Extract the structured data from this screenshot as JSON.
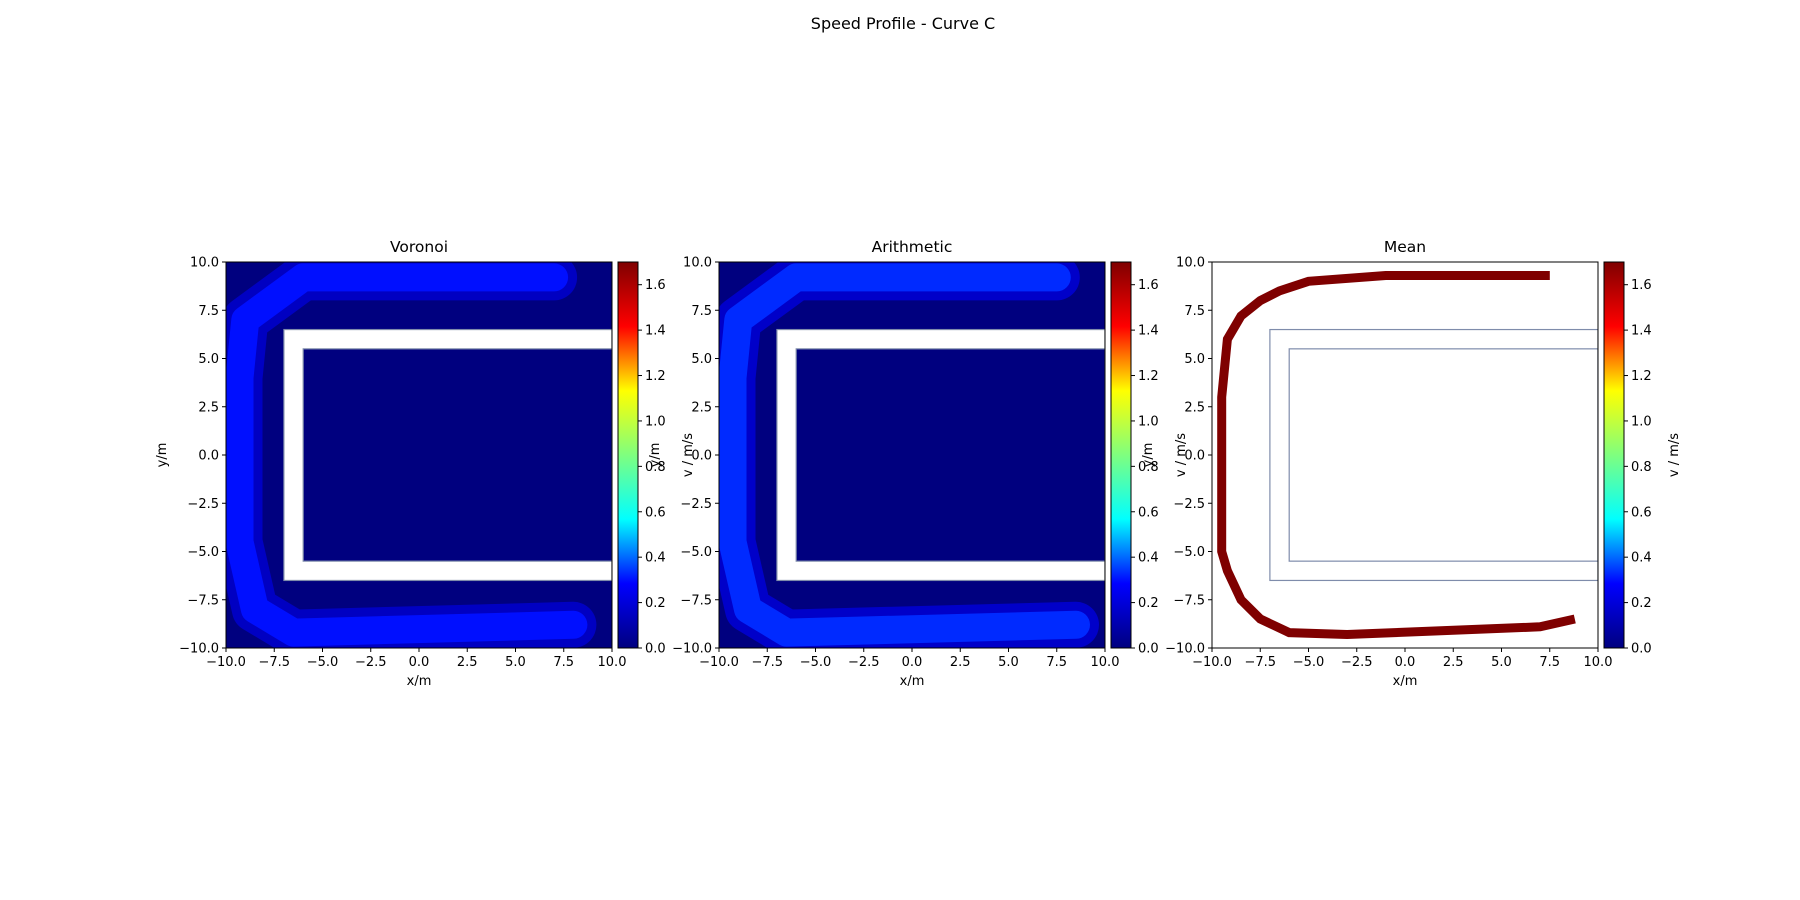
{
  "figure_title": "Speed Profile - Curve C",
  "colormap_colors": [
    "#00007f",
    "#0000ff",
    "#00ffff",
    "#7fff7f",
    "#ffff00",
    "#ff0000",
    "#7f0000"
  ],
  "wall_color": "#7f8cab",
  "chart_data": [
    {
      "type": "heatmap",
      "title": "Voronoi",
      "xlabel": "x/m",
      "ylabel": "y/m",
      "xlim": [
        -10,
        10
      ],
      "ylim": [
        -10,
        10
      ],
      "x_ticks": [
        "−10.0",
        "−7.5",
        "−5.0",
        "−2.5",
        "0.0",
        "2.5",
        "5.0",
        "7.5",
        "10.0"
      ],
      "y_ticks": [
        "−10.0",
        "−7.5",
        "−5.0",
        "−2.5",
        "0.0",
        "2.5",
        "5.0",
        "7.5",
        "10.0"
      ],
      "colorbar": {
        "label": "v / m/s",
        "range": [
          0,
          1.7
        ],
        "ticks": [
          "0.0",
          "0.2",
          "0.4",
          "0.6",
          "0.8",
          "1.0",
          "1.2",
          "1.4",
          "1.6"
        ]
      },
      "background_value": 0.0,
      "corridor_value": 0.3,
      "corridor_path": [
        [
          7.0,
          9.2
        ],
        [
          -6.0,
          9.2
        ],
        [
          -9.0,
          7.0
        ],
        [
          -9.3,
          4.0
        ],
        [
          -9.3,
          -4.5
        ],
        [
          -8.5,
          -8.0
        ],
        [
          -6.5,
          -9.2
        ],
        [
          8.0,
          -8.8
        ]
      ],
      "obstacle_outer": {
        "x": [
          -7.0,
          10.0
        ],
        "y": [
          -6.5,
          6.5
        ]
      },
      "obstacle_inner": {
        "x": [
          -6.0,
          10.0
        ],
        "y": [
          -5.5,
          5.5
        ]
      },
      "grid": false
    },
    {
      "type": "heatmap",
      "title": "Arithmetic",
      "xlabel": "x/m",
      "ylabel": "y/m",
      "xlim": [
        -10,
        10
      ],
      "ylim": [
        -10,
        10
      ],
      "x_ticks": [
        "−10.0",
        "−7.5",
        "−5.0",
        "−2.5",
        "0.0",
        "2.5",
        "5.0",
        "7.5",
        "10.0"
      ],
      "y_ticks": [
        "−10.0",
        "−7.5",
        "−5.0",
        "−2.5",
        "0.0",
        "2.5",
        "5.0",
        "7.5",
        "10.0"
      ],
      "colorbar": {
        "label": "v / m/s",
        "range": [
          0,
          1.7
        ],
        "ticks": [
          "0.0",
          "0.2",
          "0.4",
          "0.6",
          "0.8",
          "1.0",
          "1.2",
          "1.4",
          "1.6"
        ]
      },
      "background_value": 0.0,
      "corridor_value": 0.33,
      "corridor_path": [
        [
          7.5,
          9.2
        ],
        [
          -6.0,
          9.2
        ],
        [
          -9.0,
          7.0
        ],
        [
          -9.3,
          4.0
        ],
        [
          -9.3,
          -4.5
        ],
        [
          -8.5,
          -8.0
        ],
        [
          -6.5,
          -9.2
        ],
        [
          8.5,
          -8.8
        ]
      ],
      "obstacle_outer": {
        "x": [
          -7.0,
          10.0
        ],
        "y": [
          -6.5,
          6.5
        ]
      },
      "obstacle_inner": {
        "x": [
          -6.0,
          10.0
        ],
        "y": [
          -5.5,
          5.5
        ]
      },
      "grid": false
    },
    {
      "type": "heatmap",
      "title": "Mean",
      "xlabel": "x/m",
      "ylabel": "y/m",
      "xlim": [
        -10,
        10
      ],
      "ylim": [
        -10,
        10
      ],
      "x_ticks": [
        "−10.0",
        "−7.5",
        "−5.0",
        "−2.5",
        "0.0",
        "2.5",
        "5.0",
        "7.5",
        "10.0"
      ],
      "y_ticks": [
        "−10.0",
        "−7.5",
        "−5.0",
        "−2.5",
        "0.0",
        "2.5",
        "5.0",
        "7.5",
        "10.0"
      ],
      "colorbar": {
        "label": "v / m/s",
        "range": [
          0,
          1.7
        ],
        "ticks": [
          "0.0",
          "0.2",
          "0.4",
          "0.6",
          "0.8",
          "1.0",
          "1.2",
          "1.4",
          "1.6"
        ]
      },
      "background_value": null,
      "trace_value": 1.7,
      "trace_path": [
        [
          7.5,
          9.3
        ],
        [
          -1.0,
          9.3
        ],
        [
          -5.0,
          9.0
        ],
        [
          -6.5,
          8.5
        ],
        [
          -7.5,
          8.0
        ],
        [
          -8.5,
          7.2
        ],
        [
          -9.2,
          6.0
        ],
        [
          -9.5,
          3.0
        ],
        [
          -9.5,
          -5.0
        ],
        [
          -9.2,
          -6.0
        ],
        [
          -8.5,
          -7.5
        ],
        [
          -7.5,
          -8.5
        ],
        [
          -6.0,
          -9.2
        ],
        [
          -3.0,
          -9.3
        ],
        [
          7.0,
          -8.9
        ],
        [
          8.8,
          -8.5
        ]
      ],
      "obstacle_outer": {
        "x": [
          -7.0,
          10.0
        ],
        "y": [
          -6.5,
          6.5
        ]
      },
      "obstacle_inner": {
        "x": [
          -6.0,
          10.0
        ],
        "y": [
          -5.5,
          5.5
        ]
      },
      "grid": false
    }
  ]
}
